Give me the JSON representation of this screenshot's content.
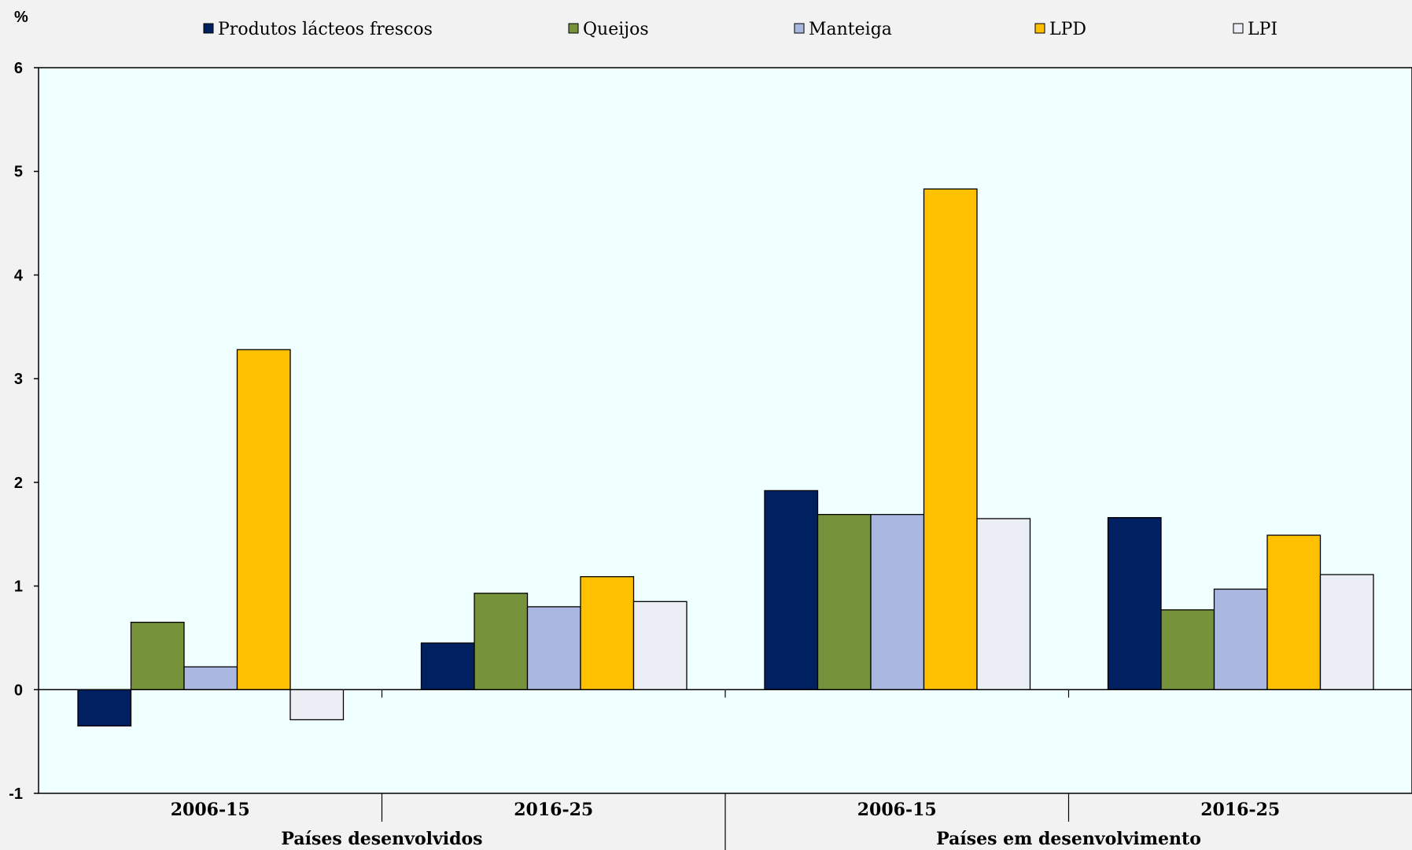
{
  "chart_data": {
    "type": "bar",
    "unit_label": "%",
    "categories": [
      "2006-15",
      "2016-25",
      "2006-15",
      "2016-25"
    ],
    "groups": [
      {
        "label": "Países desenvolvidos",
        "categories": [
          "2006-15",
          "2016-25"
        ]
      },
      {
        "label": "Países em desenvolvimento",
        "categories": [
          "2006-15",
          "2016-25"
        ]
      }
    ],
    "series": [
      {
        "name": "Produtos lácteos frescos",
        "color": "#002060",
        "values": [
          -0.35,
          0.45,
          1.92,
          1.66
        ]
      },
      {
        "name": "Queijos",
        "color": "#76933c",
        "values": [
          0.65,
          0.93,
          1.69,
          0.77
        ]
      },
      {
        "name": "Manteiga",
        "color": "#a9b7e1",
        "values": [
          0.22,
          0.8,
          1.69,
          0.97
        ]
      },
      {
        "name": "LPD",
        "color": "#ffc000",
        "values": [
          3.28,
          1.09,
          4.83,
          1.49
        ]
      },
      {
        "name": "LPI",
        "color": "#eceef6",
        "values": [
          -0.29,
          0.85,
          1.65,
          1.11
        ]
      }
    ],
    "ylim": [
      -1,
      6
    ],
    "yticks": [
      6,
      5,
      4,
      3,
      2,
      1,
      0,
      -1
    ],
    "plot_background": "#f0ffff",
    "grid": false,
    "legend_position": "top"
  }
}
